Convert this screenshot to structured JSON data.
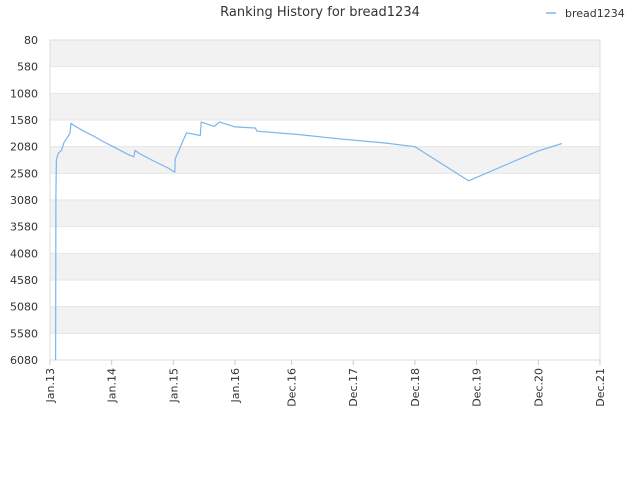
{
  "chart_data": {
    "type": "line",
    "title": "Ranking History for bread1234",
    "xlabel": "",
    "ylabel": "",
    "y_inverted": true,
    "ylim": [
      80,
      6080
    ],
    "yticks": [
      80,
      580,
      1080,
      1580,
      2080,
      2580,
      3080,
      3580,
      4080,
      4580,
      5080,
      5580,
      6080
    ],
    "xlim": [
      "2013-01-01",
      "2021-12-01"
    ],
    "xticks": [
      {
        "date": "2013-01-01",
        "label": "Jan.13"
      },
      {
        "date": "2014-01-01",
        "label": "Jan.14"
      },
      {
        "date": "2015-01-01",
        "label": "Jan.15"
      },
      {
        "date": "2016-01-01",
        "label": "Jan.16"
      },
      {
        "date": "2016-12-01",
        "label": "Dec.16"
      },
      {
        "date": "2017-12-01",
        "label": "Dec.17"
      },
      {
        "date": "2018-12-01",
        "label": "Dec.18"
      },
      {
        "date": "2019-12-01",
        "label": "Dec.19"
      },
      {
        "date": "2020-12-01",
        "label": "Dec.20"
      },
      {
        "date": "2021-12-01",
        "label": "Dec.21"
      }
    ],
    "grid": true,
    "band_color": "#f2f2f2",
    "line_color": "#7cb5ec",
    "legend_position": "top-right",
    "series": [
      {
        "name": "bread1234",
        "points": [
          [
            "2013-02-03",
            6080
          ],
          [
            "2013-02-05",
            3000
          ],
          [
            "2013-02-08",
            2320
          ],
          [
            "2013-02-20",
            2200
          ],
          [
            "2013-03-10",
            2150
          ],
          [
            "2013-03-25",
            2000
          ],
          [
            "2013-04-15",
            1900
          ],
          [
            "2013-04-30",
            1820
          ],
          [
            "2013-05-05",
            1640
          ],
          [
            "2013-05-12",
            1660
          ],
          [
            "2013-07-15",
            1780
          ],
          [
            "2013-09-15",
            1880
          ],
          [
            "2013-11-15",
            1990
          ],
          [
            "2014-01-10",
            2080
          ],
          [
            "2014-04-10",
            2230
          ],
          [
            "2014-05-12",
            2270
          ],
          [
            "2014-05-20",
            2150
          ],
          [
            "2014-06-10",
            2200
          ],
          [
            "2014-09-01",
            2340
          ],
          [
            "2014-12-01",
            2480
          ],
          [
            "2015-01-10",
            2560
          ],
          [
            "2015-01-12",
            2310
          ],
          [
            "2015-03-20",
            1820
          ],
          [
            "2015-06-10",
            1870
          ],
          [
            "2015-06-15",
            1620
          ],
          [
            "2015-09-01",
            1700
          ],
          [
            "2015-10-01",
            1620
          ],
          [
            "2015-11-15",
            1660
          ],
          [
            "2016-01-01",
            1710
          ],
          [
            "2016-05-01",
            1730
          ],
          [
            "2016-05-10",
            1790
          ],
          [
            "2017-01-01",
            1850
          ],
          [
            "2017-09-01",
            1930
          ],
          [
            "2018-06-01",
            2010
          ],
          [
            "2018-12-01",
            2080
          ],
          [
            "2019-10-15",
            2720
          ],
          [
            "2020-12-01",
            2160
          ],
          [
            "2021-04-20",
            2020
          ]
        ]
      }
    ]
  }
}
